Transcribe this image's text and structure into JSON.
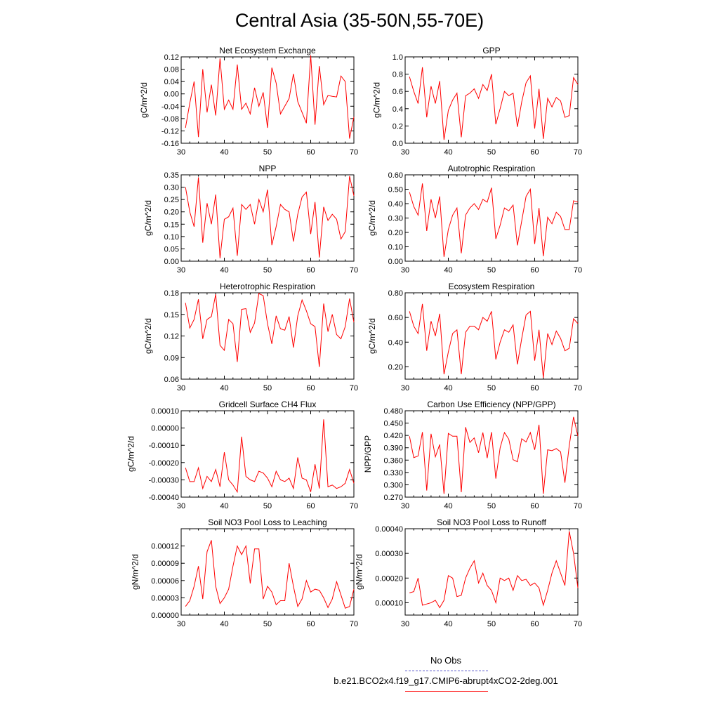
{
  "title": "Central Asia (35-50N,55-70E)",
  "colors": {
    "series": "#ff0000",
    "obs": "#5555cc",
    "axis": "#000000"
  },
  "legend": {
    "obs_label": "No Obs",
    "model_label": "b.e21.BCO2x4.f19_g17.CMIP6-abrupt4xCO2-2deg.001"
  },
  "chart_data": [
    {
      "type": "line",
      "title": "Net Ecosystem Exchange",
      "xlabel": "",
      "ylabel": "gC/m^2/d",
      "xlim": [
        31,
        70
      ],
      "ylim": [
        -0.16,
        0.12
      ],
      "xticks": [
        30,
        40,
        50,
        60,
        70
      ],
      "yticks": [
        -0.16,
        -0.12,
        -0.08,
        -0.04,
        0.0,
        0.04,
        0.08,
        0.12
      ],
      "ytick_labels": [
        "-0.16",
        "-0.12",
        "-0.08",
        "-0.04",
        "0.00",
        "0.04",
        "0.08",
        "0.12"
      ],
      "x": [
        31,
        32,
        33,
        34,
        35,
        36,
        37,
        38,
        39,
        40,
        41,
        42,
        43,
        44,
        45,
        46,
        47,
        48,
        49,
        50,
        51,
        52,
        53,
        54,
        55,
        56,
        57,
        58,
        59,
        60,
        61,
        62,
        63,
        64,
        65,
        66,
        67,
        68,
        69,
        70
      ],
      "series": [
        {
          "values": [
            -0.11,
            -0.03,
            0.04,
            -0.14,
            0.08,
            -0.06,
            0.03,
            -0.07,
            0.115,
            -0.05,
            -0.02,
            -0.05,
            0.095,
            -0.05,
            -0.03,
            -0.065,
            0.02,
            -0.04,
            0.005,
            -0.11,
            0.085,
            0.035,
            -0.065,
            -0.04,
            -0.015,
            0.065,
            -0.025,
            -0.06,
            -0.095,
            0.125,
            -0.1,
            0.09,
            -0.035,
            -0.005,
            -0.008,
            -0.01,
            0.058,
            0.04,
            -0.145,
            -0.075
          ]
        }
      ]
    },
    {
      "type": "line",
      "title": "GPP",
      "xlabel": "",
      "ylabel": "gC/m^2/d",
      "xlim": [
        31,
        70
      ],
      "ylim": [
        0.0,
        1.0
      ],
      "xticks": [
        30,
        40,
        50,
        60,
        70
      ],
      "yticks": [
        0.0,
        0.2,
        0.4,
        0.6,
        0.8,
        1.0
      ],
      "ytick_labels": [
        "0.0",
        "0.2",
        "0.4",
        "0.6",
        "0.8",
        "1.0"
      ],
      "x": [
        31,
        32,
        33,
        34,
        35,
        36,
        37,
        38,
        39,
        40,
        41,
        42,
        43,
        44,
        45,
        46,
        47,
        48,
        49,
        50,
        51,
        52,
        53,
        54,
        55,
        56,
        57,
        58,
        59,
        60,
        61,
        62,
        63,
        64,
        65,
        66,
        67,
        68,
        69,
        70
      ],
      "series": [
        {
          "values": [
            0.77,
            0.6,
            0.46,
            0.88,
            0.3,
            0.66,
            0.46,
            0.72,
            0.04,
            0.38,
            0.5,
            0.58,
            0.07,
            0.55,
            0.58,
            0.63,
            0.52,
            0.68,
            0.61,
            0.8,
            0.22,
            0.4,
            0.6,
            0.55,
            0.58,
            0.19,
            0.48,
            0.7,
            0.78,
            0.17,
            0.63,
            0.05,
            0.52,
            0.42,
            0.53,
            0.49,
            0.3,
            0.32,
            0.76,
            0.68
          ]
        }
      ]
    },
    {
      "type": "line",
      "title": "NPP",
      "xlabel": "",
      "ylabel": "gC/m^2/d",
      "xlim": [
        31,
        70
      ],
      "ylim": [
        0.0,
        0.35
      ],
      "xticks": [
        30,
        40,
        50,
        60,
        70
      ],
      "yticks": [
        0.0,
        0.05,
        0.1,
        0.15,
        0.2,
        0.25,
        0.3,
        0.35
      ],
      "ytick_labels": [
        "0.00",
        "0.05",
        "0.10",
        "0.15",
        "0.20",
        "0.25",
        "0.30",
        "0.35"
      ],
      "x": [
        31,
        32,
        33,
        34,
        35,
        36,
        37,
        38,
        39,
        40,
        41,
        42,
        43,
        44,
        45,
        46,
        47,
        48,
        49,
        50,
        51,
        52,
        53,
        54,
        55,
        56,
        57,
        58,
        59,
        60,
        61,
        62,
        63,
        64,
        65,
        66,
        67,
        68,
        69,
        70
      ],
      "series": [
        {
          "values": [
            0.3,
            0.2,
            0.14,
            0.34,
            0.075,
            0.235,
            0.15,
            0.27,
            0.012,
            0.17,
            0.18,
            0.215,
            0.022,
            0.23,
            0.21,
            0.23,
            0.15,
            0.25,
            0.2,
            0.29,
            0.065,
            0.14,
            0.23,
            0.21,
            0.2,
            0.08,
            0.19,
            0.26,
            0.28,
            0.11,
            0.24,
            0.015,
            0.22,
            0.165,
            0.19,
            0.17,
            0.09,
            0.12,
            0.345,
            0.265
          ]
        }
      ]
    },
    {
      "type": "line",
      "title": "Autotrophic Respiration",
      "xlabel": "",
      "ylabel": "gC/m^2/d",
      "xlim": [
        31,
        70
      ],
      "ylim": [
        0.0,
        0.6
      ],
      "xticks": [
        30,
        40,
        50,
        60,
        70
      ],
      "yticks": [
        0.0,
        0.1,
        0.2,
        0.3,
        0.4,
        0.5,
        0.6
      ],
      "ytick_labels": [
        "0.00",
        "0.10",
        "0.20",
        "0.30",
        "0.40",
        "0.50",
        "0.60"
      ],
      "x": [
        31,
        32,
        33,
        34,
        35,
        36,
        37,
        38,
        39,
        40,
        41,
        42,
        43,
        44,
        45,
        46,
        47,
        48,
        49,
        50,
        51,
        52,
        53,
        54,
        55,
        56,
        57,
        58,
        59,
        60,
        61,
        62,
        63,
        64,
        65,
        66,
        67,
        68,
        69,
        70
      ],
      "series": [
        {
          "values": [
            0.48,
            0.38,
            0.32,
            0.54,
            0.21,
            0.43,
            0.3,
            0.45,
            0.03,
            0.22,
            0.32,
            0.37,
            0.055,
            0.32,
            0.37,
            0.4,
            0.36,
            0.43,
            0.41,
            0.51,
            0.155,
            0.25,
            0.37,
            0.35,
            0.39,
            0.11,
            0.28,
            0.45,
            0.5,
            0.12,
            0.37,
            0.035,
            0.305,
            0.26,
            0.34,
            0.31,
            0.22,
            0.22,
            0.42,
            0.41
          ]
        }
      ]
    },
    {
      "type": "line",
      "title": "Heterotrophic Respiration",
      "xlabel": "",
      "ylabel": "gC/m^2/d",
      "xlim": [
        31,
        70
      ],
      "ylim": [
        0.06,
        0.18
      ],
      "xticks": [
        30,
        40,
        50,
        60,
        70
      ],
      "yticks": [
        0.06,
        0.09,
        0.12,
        0.15,
        0.18
      ],
      "ytick_labels": [
        "0.06",
        "0.09",
        "0.12",
        "0.15",
        "0.18"
      ],
      "x": [
        31,
        32,
        33,
        34,
        35,
        36,
        37,
        38,
        39,
        40,
        41,
        42,
        43,
        44,
        45,
        46,
        47,
        48,
        49,
        50,
        51,
        52,
        53,
        54,
        55,
        56,
        57,
        58,
        59,
        60,
        61,
        62,
        63,
        64,
        65,
        66,
        67,
        68,
        69,
        70
      ],
      "series": [
        {
          "values": [
            0.166,
            0.131,
            0.143,
            0.171,
            0.116,
            0.143,
            0.147,
            0.178,
            0.107,
            0.1,
            0.143,
            0.137,
            0.084,
            0.157,
            0.158,
            0.125,
            0.138,
            0.179,
            0.176,
            0.137,
            0.109,
            0.148,
            0.13,
            0.128,
            0.147,
            0.104,
            0.148,
            0.17,
            0.155,
            0.137,
            0.133,
            0.077,
            0.165,
            0.126,
            0.15,
            0.122,
            0.116,
            0.133,
            0.172,
            0.139
          ]
        }
      ]
    },
    {
      "type": "line",
      "title": "Ecosystem Respiration",
      "xlabel": "",
      "ylabel": "gC/m^2/d",
      "xlim": [
        31,
        70
      ],
      "ylim": [
        0.1,
        0.8
      ],
      "xticks": [
        30,
        40,
        50,
        60,
        70
      ],
      "yticks": [
        0.2,
        0.4,
        0.6,
        0.8
      ],
      "ytick_labels": [
        "0.20",
        "0.40",
        "0.60",
        "0.80"
      ],
      "x": [
        31,
        32,
        33,
        34,
        35,
        36,
        37,
        38,
        39,
        40,
        41,
        42,
        43,
        44,
        45,
        46,
        47,
        48,
        49,
        50,
        51,
        52,
        53,
        54,
        55,
        56,
        57,
        58,
        59,
        60,
        61,
        62,
        63,
        64,
        65,
        66,
        67,
        68,
        69,
        70
      ],
      "series": [
        {
          "values": [
            0.65,
            0.53,
            0.47,
            0.71,
            0.33,
            0.57,
            0.45,
            0.63,
            0.14,
            0.32,
            0.47,
            0.5,
            0.14,
            0.48,
            0.53,
            0.53,
            0.5,
            0.6,
            0.57,
            0.65,
            0.26,
            0.4,
            0.5,
            0.48,
            0.54,
            0.22,
            0.43,
            0.62,
            0.65,
            0.25,
            0.5,
            0.11,
            0.47,
            0.38,
            0.49,
            0.43,
            0.33,
            0.35,
            0.59,
            0.55
          ]
        }
      ]
    },
    {
      "type": "line",
      "title": "Gridcell Surface CH4 Flux",
      "xlabel": "",
      "ylabel": "gC/m^2/d",
      "xlim": [
        31,
        70
      ],
      "ylim": [
        -0.0004,
        0.0001
      ],
      "xticks": [
        30,
        40,
        50,
        60,
        70
      ],
      "yticks": [
        -0.0004,
        -0.0003,
        -0.0002,
        -0.0001,
        0.0,
        0.0001
      ],
      "ytick_labels": [
        "-0.00040",
        "-0.00030",
        "-0.00020",
        "-0.00010",
        "0.00000",
        "0.00010"
      ],
      "x": [
        31,
        32,
        33,
        34,
        35,
        36,
        37,
        38,
        39,
        40,
        41,
        42,
        43,
        44,
        45,
        46,
        47,
        48,
        49,
        50,
        51,
        52,
        53,
        54,
        55,
        56,
        57,
        58,
        59,
        60,
        61,
        62,
        63,
        64,
        65,
        66,
        67,
        68,
        69,
        70
      ],
      "series": [
        {
          "values": [
            -0.00023,
            -0.00031,
            -0.00031,
            -0.00023,
            -0.00035,
            -0.00028,
            -0.00031,
            -0.00024,
            -0.00034,
            -0.00014,
            -0.0003,
            -0.00033,
            -0.00037,
            -5e-05,
            -0.00028,
            -0.0003,
            -0.00031,
            -0.00025,
            -0.00026,
            -0.00029,
            -0.00034,
            -0.00025,
            -0.0003,
            -0.00031,
            -0.00029,
            -0.00035,
            -0.00017,
            -0.00029,
            -0.0003,
            -0.00037,
            -0.00021,
            -0.00035,
            5e-05,
            -0.00034,
            -0.00033,
            -0.00035,
            -0.00034,
            -0.00032,
            -0.00024,
            -0.00032
          ]
        }
      ]
    },
    {
      "type": "line",
      "title": "Carbon Use Efficiency (NPP/GPP)",
      "xlabel": "",
      "ylabel": "NPP/GPP",
      "xlim": [
        31,
        70
      ],
      "ylim": [
        0.27,
        0.48
      ],
      "xticks": [
        30,
        40,
        50,
        60,
        70
      ],
      "yticks": [
        0.27,
        0.3,
        0.33,
        0.36,
        0.39,
        0.42,
        0.45,
        0.48
      ],
      "ytick_labels": [
        "0.270",
        "0.300",
        "0.330",
        "0.360",
        "0.390",
        "0.420",
        "0.450",
        "0.480"
      ],
      "x": [
        31,
        32,
        33,
        34,
        35,
        36,
        37,
        38,
        39,
        40,
        41,
        42,
        43,
        44,
        45,
        46,
        47,
        48,
        49,
        50,
        51,
        52,
        53,
        54,
        55,
        56,
        57,
        58,
        59,
        60,
        61,
        62,
        63,
        64,
        65,
        66,
        67,
        68,
        69,
        70
      ],
      "series": [
        {
          "values": [
            0.418,
            0.366,
            0.37,
            0.428,
            0.286,
            0.424,
            0.368,
            0.398,
            0.278,
            0.425,
            0.418,
            0.418,
            0.282,
            0.44,
            0.403,
            0.414,
            0.378,
            0.427,
            0.365,
            0.428,
            0.315,
            0.39,
            0.427,
            0.411,
            0.361,
            0.356,
            0.412,
            0.404,
            0.427,
            0.385,
            0.446,
            0.278,
            0.385,
            0.383,
            0.388,
            0.38,
            0.305,
            0.395,
            0.465,
            0.418
          ]
        }
      ]
    },
    {
      "type": "line",
      "title": "Soil NO3 Pool Loss to Leaching",
      "xlabel": "",
      "ylabel": "gN/m^2/d",
      "xlim": [
        31,
        70
      ],
      "ylim": [
        0.0,
        0.00015
      ],
      "xticks": [
        30,
        40,
        50,
        60,
        70
      ],
      "yticks": [
        0.0,
        3e-05,
        6e-05,
        9e-05,
        0.00012
      ],
      "ytick_labels": [
        "0.00000",
        "0.00003",
        "0.00006",
        "0.00009",
        "0.00012"
      ],
      "x": [
        31,
        32,
        33,
        34,
        35,
        36,
        37,
        38,
        39,
        40,
        41,
        42,
        43,
        44,
        45,
        46,
        47,
        48,
        49,
        50,
        51,
        52,
        53,
        54,
        55,
        56,
        57,
        58,
        59,
        60,
        61,
        62,
        63,
        64,
        65,
        66,
        67,
        68,
        69,
        70
      ],
      "series": [
        {
          "values": [
            1.5e-05,
            2.5e-05,
            5e-05,
            8.5e-05,
            2.8e-05,
            0.00011,
            0.00013,
            5e-05,
            2e-05,
            3e-05,
            4.5e-05,
            8.5e-05,
            0.00012,
            0.000105,
            0.00012,
            5.5e-05,
            0.000115,
            0.000115,
            2.8e-05,
            5e-05,
            4e-05,
            1.8e-05,
            2.5e-05,
            2.5e-05,
            9e-05,
            5e-05,
            1.5e-05,
            2.8e-05,
            6e-05,
            4e-05,
            4.5e-05,
            4.3e-05,
            3e-05,
            1.3e-05,
            2.8e-05,
            5.8e-05,
            3.5e-05,
            1.2e-05,
            1.5e-05,
            4.5e-05
          ]
        }
      ]
    },
    {
      "type": "line",
      "title": "Soil NO3 Pool Loss to Runoff",
      "xlabel": "",
      "ylabel": "gN/m^2/d",
      "xlim": [
        31,
        70
      ],
      "ylim": [
        5e-05,
        0.0004
      ],
      "xticks": [
        30,
        40,
        50,
        60,
        70
      ],
      "yticks": [
        0.0001,
        0.0002,
        0.0003,
        0.0004
      ],
      "ytick_labels": [
        "0.00010",
        "0.00020",
        "0.00030",
        "0.00040"
      ],
      "x": [
        31,
        32,
        33,
        34,
        35,
        36,
        37,
        38,
        39,
        40,
        41,
        42,
        43,
        44,
        45,
        46,
        47,
        48,
        49,
        50,
        51,
        52,
        53,
        54,
        55,
        56,
        57,
        58,
        59,
        60,
        61,
        62,
        63,
        64,
        65,
        66,
        67,
        68,
        69,
        70
      ],
      "series": [
        {
          "values": [
            0.00014,
            0.000145,
            0.0002,
            9e-05,
            9.5e-05,
            0.0001,
            0.00011,
            8e-05,
            0.00011,
            0.00021,
            0.0002,
            0.000125,
            0.00013,
            0.0002,
            0.00024,
            0.00027,
            0.00018,
            0.00022,
            0.00017,
            0.00015,
            0.0001,
            0.0002,
            0.00019,
            0.0002,
            0.00015,
            0.00021,
            0.00019,
            0.000195,
            0.00017,
            0.00018,
            0.00016,
            9e-05,
            0.00015,
            0.00022,
            0.00027,
            0.00022,
            0.00017,
            0.00039,
            0.0003,
            0.00016
          ]
        }
      ]
    }
  ]
}
